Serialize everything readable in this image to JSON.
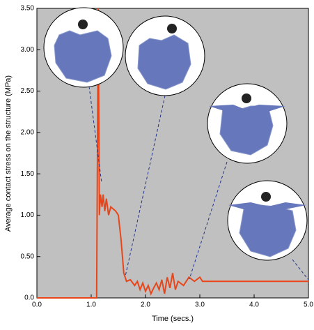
{
  "chart_data": {
    "type": "line",
    "x_label": "Time (secs.)",
    "y_label": "Average contact stress on the structure (MPa)",
    "x": [
      0,
      1.0,
      1.1,
      1.13,
      1.15,
      1.17,
      1.2,
      1.22,
      1.25,
      1.28,
      1.32,
      1.36,
      1.45,
      1.5,
      1.55,
      1.6,
      1.65,
      1.72,
      1.8,
      1.85,
      1.9,
      1.95,
      2.0,
      2.05,
      2.1,
      2.15,
      2.2,
      2.25,
      2.3,
      2.35,
      2.4,
      2.45,
      2.5,
      2.55,
      2.6,
      2.7,
      2.8,
      2.9,
      3.0,
      3.05,
      5.0
    ],
    "series": [
      {
        "color": "#e8461a",
        "values": [
          0,
          0,
          0,
          3.5,
          1.0,
          1.25,
          1.1,
          1.25,
          1.05,
          1.2,
          1.0,
          1.1,
          1.05,
          1.0,
          0.7,
          0.3,
          0.2,
          0.22,
          0.15,
          0.2,
          0.1,
          0.18,
          0.08,
          0.15,
          0.05,
          0.12,
          0.18,
          0.1,
          0.22,
          0.05,
          0.25,
          0.12,
          0.3,
          0.1,
          0.2,
          0.15,
          0.25,
          0.2,
          0.25,
          0.2,
          0.2
        ]
      }
    ],
    "xlim": [
      0,
      5
    ],
    "ylim": [
      0,
      3.5
    ],
    "xticks": [
      {
        "value": 0,
        "label": "0.0"
      },
      {
        "value": 1,
        "label": "1.0"
      },
      {
        "value": 2,
        "label": "2.0"
      },
      {
        "value": 3,
        "label": "3.0"
      },
      {
        "value": 4,
        "label": "4.0"
      },
      {
        "value": 5,
        "label": "5.0"
      }
    ],
    "yticks": [
      {
        "value": 0,
        "label": "0.0"
      },
      {
        "value": 0.5,
        "label": "0.50"
      },
      {
        "value": 1,
        "label": "1.00"
      },
      {
        "value": 1.5,
        "label": "1.50"
      },
      {
        "value": 2,
        "label": "2.00"
      },
      {
        "value": 2.5,
        "label": "2.50"
      },
      {
        "value": 3,
        "label": "3.00"
      },
      {
        "value": 3.5,
        "label": "3.50"
      }
    ],
    "background": "#c0c0c0"
  }
}
